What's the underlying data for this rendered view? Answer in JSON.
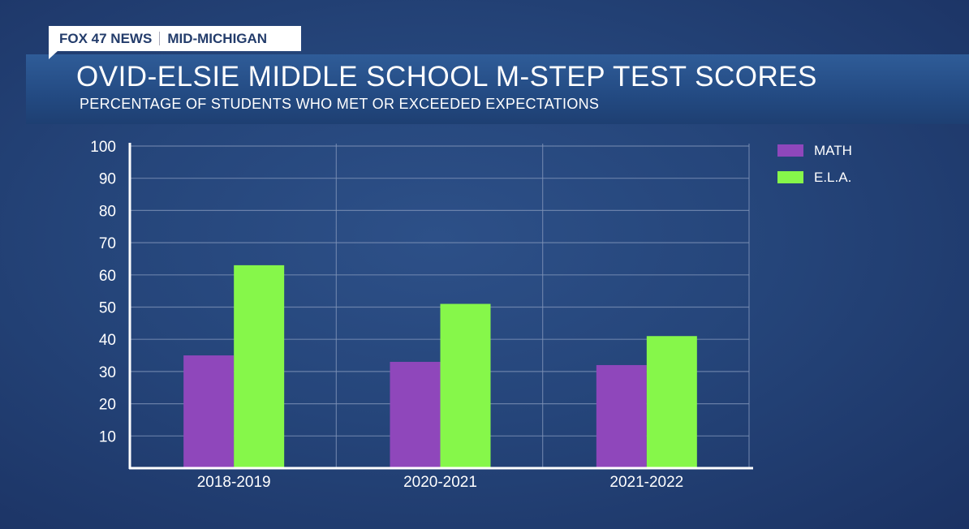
{
  "brand": {
    "station": "FOX 47 NEWS",
    "region": "MID-MICHIGAN"
  },
  "chart_data": {
    "type": "bar",
    "title": "OVID-ELSIE MIDDLE SCHOOL M-STEP TEST SCORES",
    "subtitle": "PERCENTAGE OF STUDENTS WHO MET OR EXCEEDED EXPECTATIONS",
    "categories": [
      "2018-2019",
      "2020-2021",
      "2021-2022"
    ],
    "series": [
      {
        "name": "MATH",
        "values": [
          35,
          33,
          32
        ],
        "color": "#8f47bb"
      },
      {
        "name": "E.L.A.",
        "values": [
          63,
          51,
          41
        ],
        "color": "#86f74a"
      }
    ],
    "ylim": [
      0,
      100
    ],
    "yticks": [
      10,
      20,
      30,
      40,
      50,
      60,
      70,
      80,
      90,
      100
    ],
    "xlabel": "",
    "ylabel": "",
    "grid": true,
    "legend": "top-right"
  }
}
